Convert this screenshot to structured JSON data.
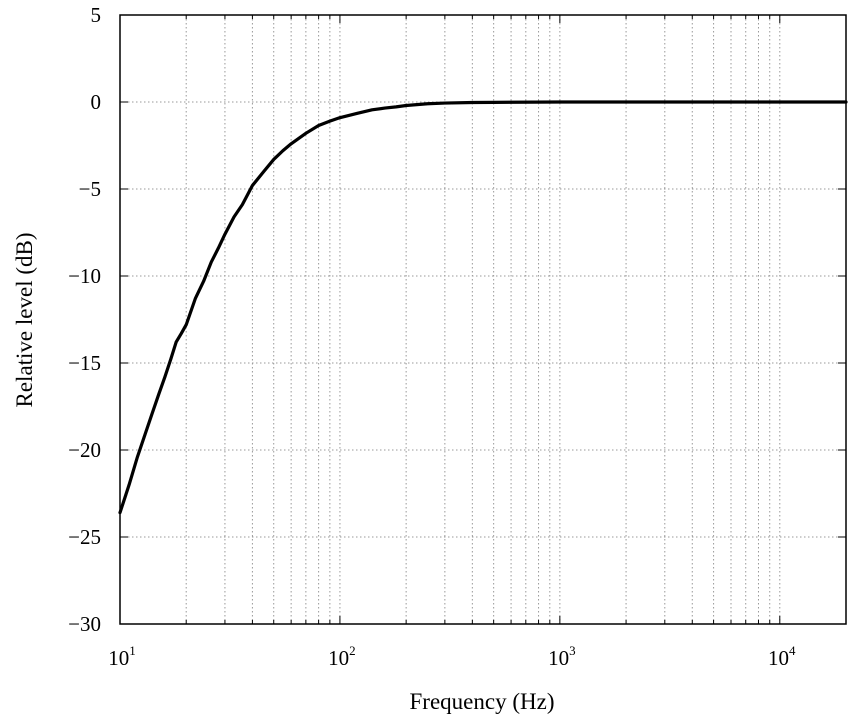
{
  "chart_data": {
    "type": "line",
    "xlabel": "Frequency (Hz)",
    "ylabel": "Relative level (dB)",
    "xscale": "log",
    "xlim": [
      10,
      20000
    ],
    "ylim": [
      -30,
      5
    ],
    "grid": true,
    "x_ticks": [
      {
        "value": 10,
        "base": "10",
        "exp": "1"
      },
      {
        "value": 100,
        "base": "10",
        "exp": "2"
      },
      {
        "value": 1000,
        "base": "10",
        "exp": "3"
      },
      {
        "value": 10000,
        "base": "10",
        "exp": "4"
      }
    ],
    "y_ticks": [
      {
        "value": 5,
        "label": "5"
      },
      {
        "value": 0,
        "label": "0"
      },
      {
        "value": -5,
        "label": "−5"
      },
      {
        "value": -10,
        "label": "−10"
      },
      {
        "value": -15,
        "label": "−15"
      },
      {
        "value": -20,
        "label": "−20"
      },
      {
        "value": -25,
        "label": "−25"
      },
      {
        "value": -30,
        "label": "−30"
      }
    ],
    "series": [
      {
        "color": "#000000",
        "x": [
          10,
          11,
          12,
          13,
          14,
          15,
          16,
          17,
          18,
          19,
          20,
          22,
          24,
          26,
          28,
          30,
          33,
          36,
          40,
          45,
          50,
          55,
          60,
          70,
          80,
          90,
          100,
          120,
          140,
          160,
          180,
          200,
          250,
          300,
          400,
          500,
          1000,
          2000,
          5000,
          10000,
          20000
        ],
        "y": [
          -23.6,
          -22.0,
          -20.4,
          -19.1,
          -17.9,
          -16.8,
          -15.8,
          -14.8,
          -13.8,
          -13.3,
          -12.8,
          -11.3,
          -10.3,
          -9.2,
          -8.4,
          -7.6,
          -6.6,
          -5.9,
          -4.8,
          -4.0,
          -3.3,
          -2.8,
          -2.4,
          -1.8,
          -1.35,
          -1.1,
          -0.9,
          -0.65,
          -0.45,
          -0.35,
          -0.28,
          -0.2,
          -0.1,
          -0.06,
          -0.03,
          -0.02,
          0,
          0,
          0,
          0,
          0
        ]
      }
    ]
  }
}
